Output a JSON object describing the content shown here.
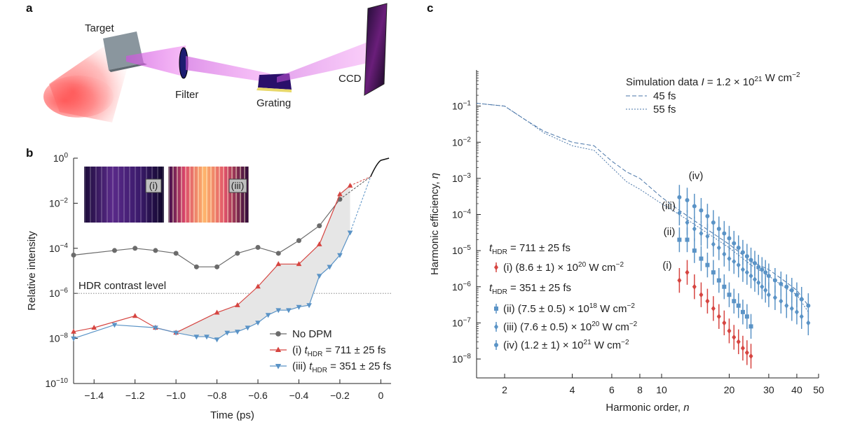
{
  "panel_a": {
    "letter": "a",
    "labels": {
      "target": "Target",
      "filter": "Filter",
      "grating": "Grating",
      "ccd": "CCD"
    }
  },
  "chart_data": [
    {
      "panel": "b",
      "type": "line",
      "xlabel": "Time (ps)",
      "ylabel": "Relative intensity",
      "yscale": "log",
      "xlim": [
        -1.5,
        0.05
      ],
      "ylim": [
        1e-10,
        1
      ],
      "x_ticks": [
        -1.4,
        -1.2,
        -1.0,
        -0.8,
        -0.6,
        -0.4,
        -0.2,
        0
      ],
      "x_tick_labels": [
        "−1.4",
        "−1.2",
        "−1.0",
        "−0.8",
        "−0.6",
        "−0.4",
        "−0.2",
        "0"
      ],
      "y_ticks": [
        1e-10,
        1e-08,
        1e-06,
        0.0001,
        0.01,
        1
      ],
      "y_tick_labels": [
        {
          "base": "10",
          "exp": "−10"
        },
        {
          "base": "10",
          "exp": "−8"
        },
        {
          "base": "10",
          "exp": "−6"
        },
        {
          "base": "10",
          "exp": "−4"
        },
        {
          "base": "10",
          "exp": "−2"
        },
        {
          "base": "10",
          "exp": "0"
        }
      ],
      "hdr_level": 1e-06,
      "hdr_label": "HDR contrast level",
      "legend_position": "bottom-right",
      "inset_labels": [
        "(i)",
        "(iii)"
      ],
      "series": [
        {
          "name": "No DPM",
          "color": "#6b6b6b",
          "marker": "circle",
          "x": [
            -1.5,
            -1.3,
            -1.2,
            -1.1,
            -1.0,
            -0.9,
            -0.8,
            -0.7,
            -0.6,
            -0.5,
            -0.4,
            -0.3,
            -0.2
          ],
          "y": [
            5e-05,
            8e-05,
            0.0001,
            8e-05,
            6e-05,
            1.5e-05,
            1.5e-05,
            6e-05,
            0.00011,
            6e-05,
            0.00022,
            0.001,
            0.015
          ]
        },
        {
          "name": "(i) tHDR = 711 ± 25 fs",
          "legend": {
            "prefix": "(i) ",
            "t": "t",
            "sub": "HDR",
            "value": " = 711 ± 25 fs"
          },
          "color": "#d64541",
          "marker": "triangle-up",
          "x": [
            -1.5,
            -1.4,
            -1.2,
            -1.1,
            -1.0,
            -0.8,
            -0.7,
            -0.6,
            -0.5,
            -0.4,
            -0.3,
            -0.2,
            -0.15
          ],
          "y": [
            2e-08,
            3e-08,
            1e-07,
            3e-08,
            1.8e-08,
            1.4e-07,
            3e-07,
            2e-06,
            2e-05,
            2e-05,
            0.00015,
            0.025,
            0.06
          ]
        },
        {
          "name": "(iii) tHDR = 351 ± 25 fs",
          "legend": {
            "prefix": "(iii) ",
            "t": "t",
            "sub": "HDR",
            "value": " = 351 ± 25 fs"
          },
          "color": "#5a93c6",
          "marker": "triangle-down",
          "x": [
            -1.5,
            -1.3,
            -1.1,
            -1.0,
            -0.9,
            -0.85,
            -0.8,
            -0.75,
            -0.7,
            -0.65,
            -0.6,
            -0.55,
            -0.5,
            -0.45,
            -0.4,
            -0.35,
            -0.3,
            -0.25,
            -0.2,
            -0.15
          ],
          "y": [
            1e-08,
            4e-08,
            3e-08,
            1.8e-08,
            1.2e-08,
            1.2e-08,
            9e-09,
            1.8e-08,
            2e-08,
            3e-08,
            5e-08,
            1.1e-07,
            1.8e-07,
            1.8e-07,
            2.5e-07,
            3e-07,
            6e-06,
            1.5e-05,
            5e-05,
            0.0005
          ]
        }
      ]
    },
    {
      "panel": "c",
      "type": "scatter",
      "xlabel": "Harmonic order, n",
      "ylabel": "Harmonic efficiency, η",
      "xscale": "log",
      "yscale": "log",
      "xlim": [
        1.5,
        50
      ],
      "ylim": [
        3e-09,
        1
      ],
      "x_ticks": [
        2,
        4,
        6,
        8,
        10,
        20,
        30,
        40,
        50
      ],
      "y_ticks": [
        1e-08,
        1e-07,
        1e-06,
        1e-05,
        0.0001,
        0.001,
        0.01,
        0.1
      ],
      "y_tick_labels": [
        {
          "base": "10",
          "exp": "−8"
        },
        {
          "base": "10",
          "exp": "−7"
        },
        {
          "base": "10",
          "exp": "−6"
        },
        {
          "base": "10",
          "exp": "−5"
        },
        {
          "base": "10",
          "exp": "−4"
        },
        {
          "base": "10",
          "exp": "−3"
        },
        {
          "base": "10",
          "exp": "−2"
        },
        {
          "base": "10",
          "exp": "−1"
        }
      ],
      "sim_legend": {
        "title": "Simulation data I = 1.2 × 10^21 W cm^−2",
        "entries": [
          "45 fs",
          "55 fs"
        ]
      },
      "group_labels": [
        {
          "tlabel": "t",
          "sub": "HDR",
          "value": " = 711 ± 25 fs"
        },
        {
          "tlabel": "t",
          "sub": "HDR",
          "value": " = 351 ± 25 fs"
        }
      ],
      "curve_labels": [
        "(iv)",
        "(iii)",
        "(ii)",
        "(i)"
      ],
      "simulation": [
        {
          "name": "45 fs",
          "style": "dashed",
          "x": [
            1.5,
            2,
            2.5,
            3,
            4,
            5,
            6,
            7,
            8,
            10,
            12,
            15,
            20,
            25,
            30,
            35,
            40,
            45
          ],
          "y": [
            0.12,
            0.1,
            0.04,
            0.02,
            0.01,
            0.008,
            0.003,
            0.0015,
            0.001,
            0.0003,
            0.00013,
            5e-05,
            1.5e-05,
            5e-06,
            3e-06,
            1.5e-06,
            8e-07,
            3e-07
          ]
        },
        {
          "name": "55 fs",
          "style": "dotted",
          "x": [
            1.5,
            2,
            2.5,
            3,
            4,
            5,
            6,
            7,
            8,
            10,
            12,
            15,
            20,
            25,
            30,
            35,
            40,
            45
          ],
          "y": [
            0.12,
            0.1,
            0.04,
            0.018,
            0.008,
            0.006,
            0.002,
            0.0008,
            0.0005,
            0.0002,
            0.0001,
            4e-05,
            1.2e-05,
            4e-06,
            2e-06,
            1e-06,
            6e-07,
            2e-07
          ]
        }
      ],
      "series": [
        {
          "label": "(i)",
          "legend": {
            "prefix": "(i) (8.6 ± 1) × 10",
            "exp": "20",
            "unit": " W cm",
            "uexp": "−2"
          },
          "color": "#d64541",
          "marker": "diamond",
          "x": [
            12,
            13,
            14,
            15,
            16,
            17,
            18,
            19,
            20,
            21,
            22,
            23,
            24,
            25
          ],
          "y": [
            1.5e-06,
            2.5e-06,
            1e-06,
            6e-07,
            4e-07,
            2.5e-07,
            1.5e-07,
            1e-07,
            6e-08,
            4e-08,
            3e-08,
            2e-08,
            1.5e-08,
            1.2e-08
          ]
        },
        {
          "label": "(ii)",
          "legend": {
            "prefix": "(ii) (7.5 ± 0.5) × 10",
            "exp": "18",
            "unit": " W cm",
            "uexp": "−2"
          },
          "color": "#5a93c6",
          "marker": "square",
          "x": [
            12,
            13,
            14,
            15,
            16,
            17,
            18,
            19,
            20,
            21,
            22,
            23,
            24,
            25
          ],
          "y": [
            2e-05,
            2e-05,
            1e-05,
            6e-06,
            4e-06,
            2.5e-06,
            1.5e-06,
            1e-06,
            6e-07,
            4e-07,
            3e-07,
            2e-07,
            1.5e-07,
            8e-08
          ]
        },
        {
          "label": "(iii)",
          "legend": {
            "prefix": "(iii) (7.6 ± 0.5) × 10",
            "exp": "20",
            "unit": " W cm",
            "uexp": "−2"
          },
          "color": "#5a93c6",
          "marker": "diamond",
          "x": [
            12,
            13,
            14,
            15,
            16,
            17,
            18,
            19,
            20,
            21,
            22,
            23,
            24,
            25,
            26,
            27,
            28,
            29,
            30,
            32,
            34,
            36,
            38,
            40,
            42,
            45
          ],
          "y": [
            0.00011,
            6e-05,
            4e-05,
            3e-05,
            2.5e-05,
            1.5e-05,
            1.2e-05,
            8e-06,
            6e-06,
            5e-06,
            4e-06,
            3e-06,
            2.5e-06,
            2e-06,
            1.6e-06,
            1.3e-06,
            1e-06,
            8e-07,
            6e-07,
            5e-07,
            4e-07,
            3e-07,
            2.5e-07,
            2e-07,
            1.5e-07,
            1e-07
          ]
        },
        {
          "label": "(iv)",
          "legend": {
            "prefix": "(iv) (1.2 ± 1) × 10",
            "exp": "21",
            "unit": " W cm",
            "uexp": "−2"
          },
          "color": "#5a93c6",
          "marker": "circle",
          "x": [
            12,
            13,
            14,
            15,
            16,
            17,
            18,
            19,
            20,
            21,
            22,
            23,
            24,
            25,
            26,
            27,
            28,
            29,
            30,
            32,
            34,
            36,
            38,
            40,
            42,
            45
          ],
          "y": [
            0.0003,
            0.00025,
            0.00017,
            0.00013,
            9e-05,
            6e-05,
            4e-05,
            3e-05,
            2.2e-05,
            1.6e-05,
            1.2e-05,
            9e-06,
            7e-06,
            5.5e-06,
            4.5e-06,
            3.5e-06,
            3e-06,
            2.5e-06,
            2e-06,
            1.5e-06,
            1.2e-06,
            1e-06,
            8e-07,
            6e-07,
            4.5e-07,
            3e-07
          ]
        }
      ]
    }
  ]
}
